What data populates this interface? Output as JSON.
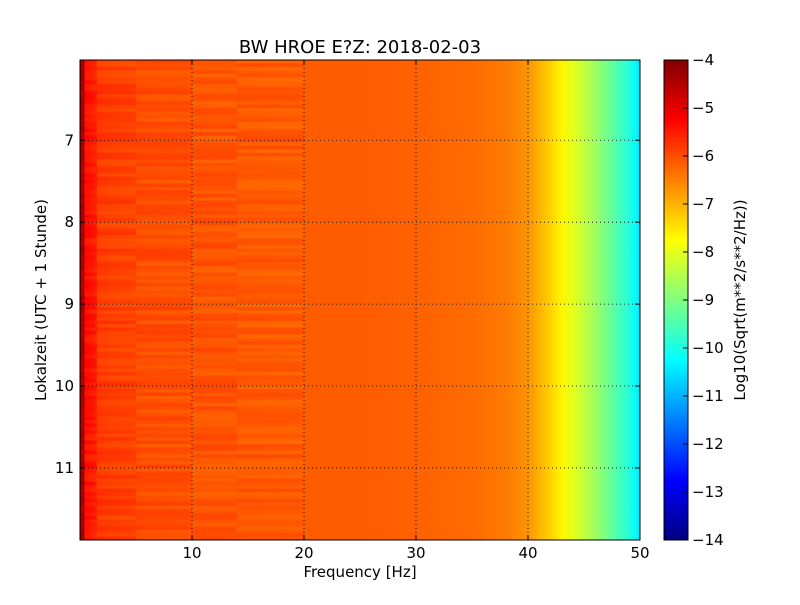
{
  "chart_data": {
    "type": "heatmap",
    "title": "BW HROE E?Z: 2018-02-03",
    "xlabel": "Frequency [Hz]",
    "ylabel": "Lokalzeit (UTC + 1 Stunde)",
    "xlim": [
      0,
      50
    ],
    "ylim": [
      11.88,
      6.02
    ],
    "x_ticks": [
      10,
      20,
      30,
      40,
      50
    ],
    "y_ticks": [
      7,
      8,
      9,
      10,
      11
    ],
    "grid": true,
    "colormap": "jet",
    "colorbar": {
      "label": "Log10(Sqrt(m**2/s**2/Hz))",
      "range": [
        -14,
        -4
      ],
      "ticks": [
        -4,
        -5,
        -6,
        -7,
        -8,
        -9,
        -10,
        -11,
        -12,
        -13,
        -14
      ]
    },
    "profile": {
      "frequency_hz": [
        0,
        0.5,
        1.5,
        3,
        6,
        10,
        15,
        20,
        25,
        30,
        35,
        38,
        40,
        41,
        42,
        43,
        44,
        45,
        46,
        47,
        48,
        49,
        49.7,
        50
      ],
      "log10_amplitude": [
        -5.0,
        -5.3,
        -5.7,
        -5.85,
        -6.0,
        -6.05,
        -6.1,
        -6.15,
        -6.15,
        -6.2,
        -6.3,
        -6.45,
        -6.7,
        -7.0,
        -7.3,
        -7.65,
        -8.0,
        -8.35,
        -8.7,
        -9.1,
        -9.5,
        -9.9,
        -10.3,
        -10.6
      ]
    }
  }
}
